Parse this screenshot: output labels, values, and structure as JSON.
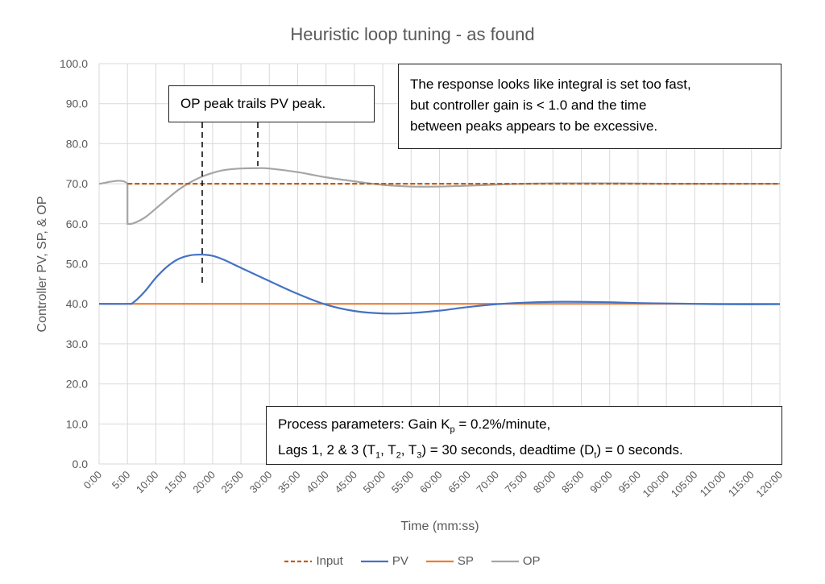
{
  "chart_data": {
    "type": "line",
    "title": "Heuristic loop tuning - as found",
    "xlabel": "Time (mm:ss)",
    "ylabel": "Controller PV, SP, & OP",
    "xlim": [
      0,
      120
    ],
    "ylim": [
      0,
      100
    ],
    "grid": true,
    "legend_position": "bottom",
    "x_tick_labels": [
      "0:00",
      "5:00",
      "10:00",
      "15:00",
      "20:00",
      "25:00",
      "30:00",
      "35:00",
      "40:00",
      "45:00",
      "50:00",
      "55:00",
      "60:00",
      "65:00",
      "70:00",
      "75:00",
      "80:00",
      "85:00",
      "90:00",
      "95:00",
      "100:00",
      "105:00",
      "110:00",
      "115:00",
      "120:00"
    ],
    "y_tick_labels": [
      "0.0",
      "10.0",
      "20.0",
      "30.0",
      "40.0",
      "50.0",
      "60.0",
      "70.0",
      "80.0",
      "90.0",
      "100.0"
    ],
    "series": [
      {
        "name": "Input",
        "color": "#C55A11",
        "dashed": true,
        "x": [
          5,
          120
        ],
        "y": [
          70,
          70
        ]
      },
      {
        "name": "PV",
        "color": "#4472C4",
        "dashed": false,
        "x": [
          0,
          5,
          6,
          8,
          10,
          12,
          14,
          16,
          18,
          20,
          22,
          25,
          30,
          35,
          40,
          45,
          50,
          55,
          60,
          65,
          70,
          75,
          80,
          85,
          90,
          95,
          100,
          105,
          110,
          120
        ],
        "y": [
          40,
          40,
          40.3,
          43,
          46.5,
          49.3,
          51.2,
          52.1,
          52.3,
          52,
          51,
          49,
          45.7,
          42.5,
          39.8,
          38.2,
          37.6,
          37.7,
          38.3,
          39.2,
          39.9,
          40.3,
          40.5,
          40.5,
          40.4,
          40.2,
          40.1,
          40,
          39.9,
          39.9
        ]
      },
      {
        "name": "SP",
        "color": "#ED7D31",
        "dashed": false,
        "x": [
          0,
          120
        ],
        "y": [
          40,
          40
        ]
      },
      {
        "name": "OP",
        "color": "#A5A5A5",
        "dashed": false,
        "x": [
          0,
          5,
          5,
          6,
          8,
          10,
          12,
          14,
          16,
          18,
          20,
          22,
          25,
          28,
          30,
          35,
          40,
          45,
          50,
          55,
          60,
          65,
          70,
          75,
          80,
          85,
          90,
          100,
          120
        ],
        "y": [
          70,
          70,
          60,
          60.1,
          61.5,
          63.8,
          66.2,
          68.5,
          70.3,
          71.7,
          72.7,
          73.4,
          73.8,
          73.9,
          73.8,
          72.9,
          71.6,
          70.6,
          69.7,
          69.3,
          69.3,
          69.5,
          69.8,
          70,
          70.1,
          70.1,
          70.1,
          70,
          70
        ]
      }
    ],
    "annotations": [
      {
        "text": "OP peak trails PV peak."
      },
      {
        "text": "The response looks like integral is set too fast, but controller gain is < 1.0 and the time between peaks appears to be excessive."
      },
      {
        "text_line1": "Process parameters: Gain K",
        "kp_sub": "p",
        "text_line1_end": " = 0.2%/minute,",
        "text_line2_a": "Lags 1, 2 & 3 (T",
        "s1": "1",
        "c1": ", T",
        "s2": "2",
        "c2": ", T",
        "s3": "3",
        "text_line2_b": ") = 30 seconds, deadtime (D",
        "st": "t",
        "text_line2_c": ") = 0 seconds."
      }
    ]
  },
  "annotation_lines": {
    "note1_l1": "The response looks like integral is set too fast,",
    "note1_l2": "but controller gain is < 1.0 and the time",
    "note1_l3": "between peaks appears to be excessive."
  }
}
